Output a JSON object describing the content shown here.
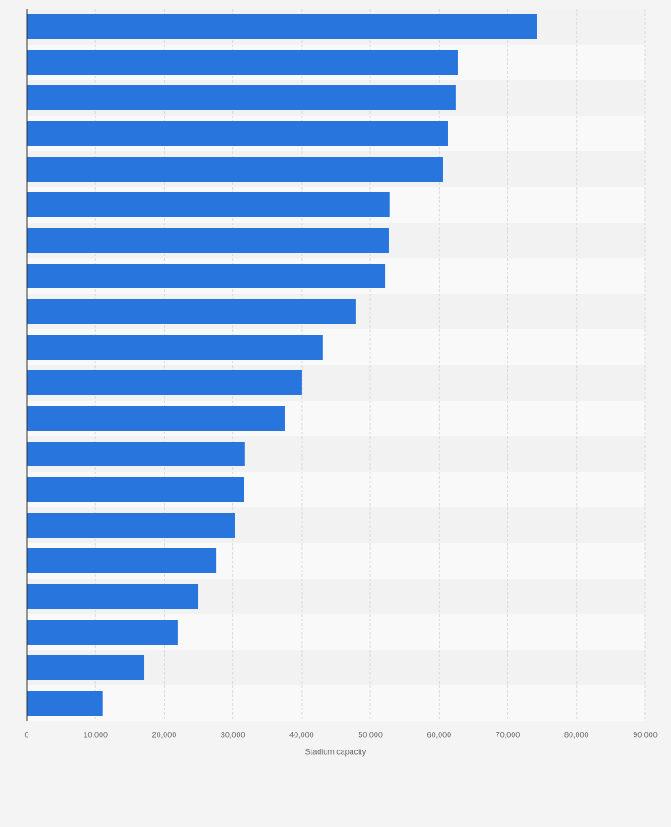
{
  "chart_data": {
    "type": "hbar",
    "x_label": "Stadium capacity",
    "categories": [
      null,
      null,
      null,
      null,
      null,
      null,
      null,
      null,
      null,
      null,
      null,
      null,
      null,
      null,
      null,
      null,
      null,
      null,
      null,
      null
    ],
    "values": [
      74200,
      62800,
      62400,
      61250,
      60600,
      52800,
      52700,
      52200,
      47900,
      43100,
      40000,
      37550,
      31700,
      31600,
      30300,
      27600,
      25000,
      22000,
      17100,
      11100
    ],
    "color": "#2876dd",
    "xlim": [
      0,
      90000
    ],
    "xticks": [
      0,
      {
        "value": 10000,
        "label": "10,000"
      },
      {
        "value": 20000,
        "label": "20,000"
      },
      {
        "value": 30000,
        "label": "30,000"
      },
      {
        "value": 40000,
        "label": "40,000"
      },
      {
        "value": 50000,
        "label": "50,000"
      },
      {
        "value": 60000,
        "label": "60,000"
      },
      {
        "value": 70000,
        "label": "70,000"
      },
      {
        "value": 80000,
        "label": "80,000"
      },
      {
        "value": 90000,
        "label": "90,000"
      }
    ],
    "grid": true
  }
}
